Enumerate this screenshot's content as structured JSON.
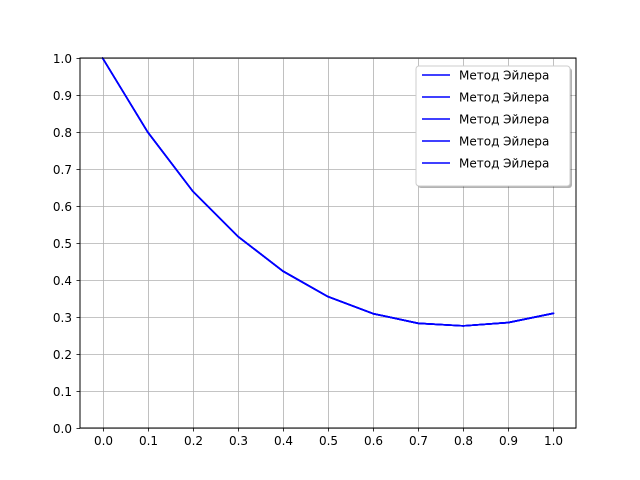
{
  "chart_data": {
    "type": "line",
    "title": "",
    "xlabel": "",
    "ylabel": "",
    "xlim": [
      -0.05,
      1.05
    ],
    "ylim": [
      0.0,
      1.0
    ],
    "x_ticks": [
      "0.0",
      "0.1",
      "0.2",
      "0.3",
      "0.4",
      "0.5",
      "0.6",
      "0.7",
      "0.8",
      "0.9",
      "1.0"
    ],
    "y_ticks": [
      "0.0",
      "0.1",
      "0.2",
      "0.3",
      "0.4",
      "0.5",
      "0.6",
      "0.7",
      "0.8",
      "0.9",
      "1.0"
    ],
    "grid": true,
    "legend": "top-right",
    "line_color": "#0000ff",
    "grid_color": "#b0b0b0",
    "x": [
      0.0,
      0.1,
      0.2,
      0.3,
      0.4,
      0.5,
      0.6,
      0.7,
      0.8,
      0.9,
      1.0
    ],
    "series": [
      {
        "name": "Метод Эйлера",
        "values": [
          1.0,
          0.8,
          0.64,
          0.518,
          0.424,
          0.355,
          0.309,
          0.283,
          0.276,
          0.285,
          0.31
        ]
      },
      {
        "name": "Метод Эйлера",
        "values": [
          1.0,
          0.8,
          0.64,
          0.518,
          0.424,
          0.355,
          0.309,
          0.283,
          0.276,
          0.285,
          0.31
        ]
      },
      {
        "name": "Метод Эйлера",
        "values": [
          1.0,
          0.8,
          0.64,
          0.518,
          0.424,
          0.355,
          0.309,
          0.283,
          0.276,
          0.285,
          0.31
        ]
      },
      {
        "name": "Метод Эйлера",
        "values": [
          1.0,
          0.8,
          0.64,
          0.518,
          0.424,
          0.355,
          0.309,
          0.283,
          0.276,
          0.285,
          0.31
        ]
      },
      {
        "name": "Метод Эйлера",
        "values": [
          1.0,
          0.8,
          0.64,
          0.518,
          0.424,
          0.355,
          0.309,
          0.283,
          0.276,
          0.285,
          0.31
        ]
      }
    ]
  }
}
